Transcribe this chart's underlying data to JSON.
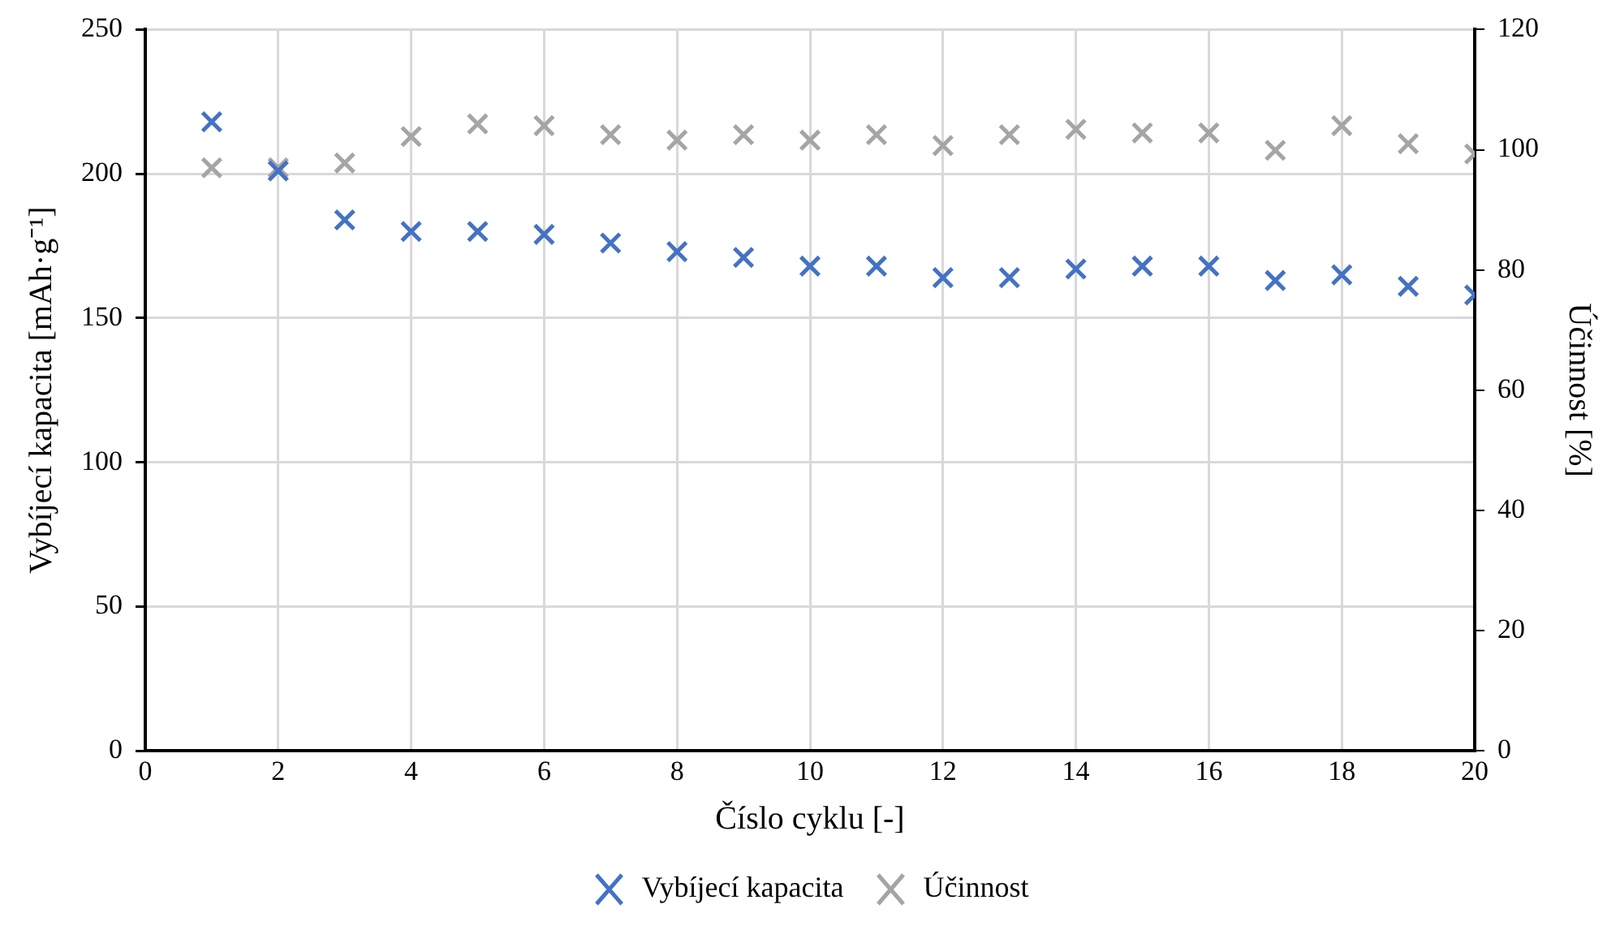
{
  "chart_data": {
    "type": "scatter",
    "xlabel": "Číslo cyklu [-]",
    "ylabel": "Vybíjecí kapacita [mAh·g⁻¹]",
    "y2label": "Účinnost [%]",
    "x": [
      1,
      2,
      3,
      4,
      5,
      6,
      7,
      8,
      9,
      10,
      11,
      12,
      13,
      14,
      15,
      16,
      17,
      18,
      19,
      20
    ],
    "series": [
      {
        "name": "Vybíjecí kapacita",
        "color": "#4472c4",
        "values": [
          218,
          201,
          184,
          180,
          180,
          179,
          176,
          173,
          171,
          168,
          168,
          164,
          164,
          167,
          168,
          168,
          163,
          165,
          161,
          158
        ]
      },
      {
        "name": "Účinnost",
        "color": "#a5a5a5",
        "axis": "y2",
        "values": [
          97,
          97,
          97.8,
          102.2,
          104.3,
          104,
          102.5,
          101.6,
          102.5,
          101.6,
          102.5,
          100.7,
          102.5,
          103.4,
          102.8,
          102.8,
          99.9,
          104,
          101,
          99.3
        ]
      }
    ],
    "xlim": [
      0,
      20
    ],
    "xticks": [
      0,
      2,
      4,
      6,
      8,
      10,
      12,
      14,
      16,
      18,
      20
    ],
    "ylim": [
      0,
      250
    ],
    "yticks": [
      0,
      50,
      100,
      150,
      200,
      250
    ],
    "y2lim": [
      0,
      120
    ],
    "y2ticks": [
      0,
      20,
      40,
      60,
      80,
      100,
      120
    ],
    "grid": true,
    "legend": "bottom",
    "marker": "cross"
  }
}
